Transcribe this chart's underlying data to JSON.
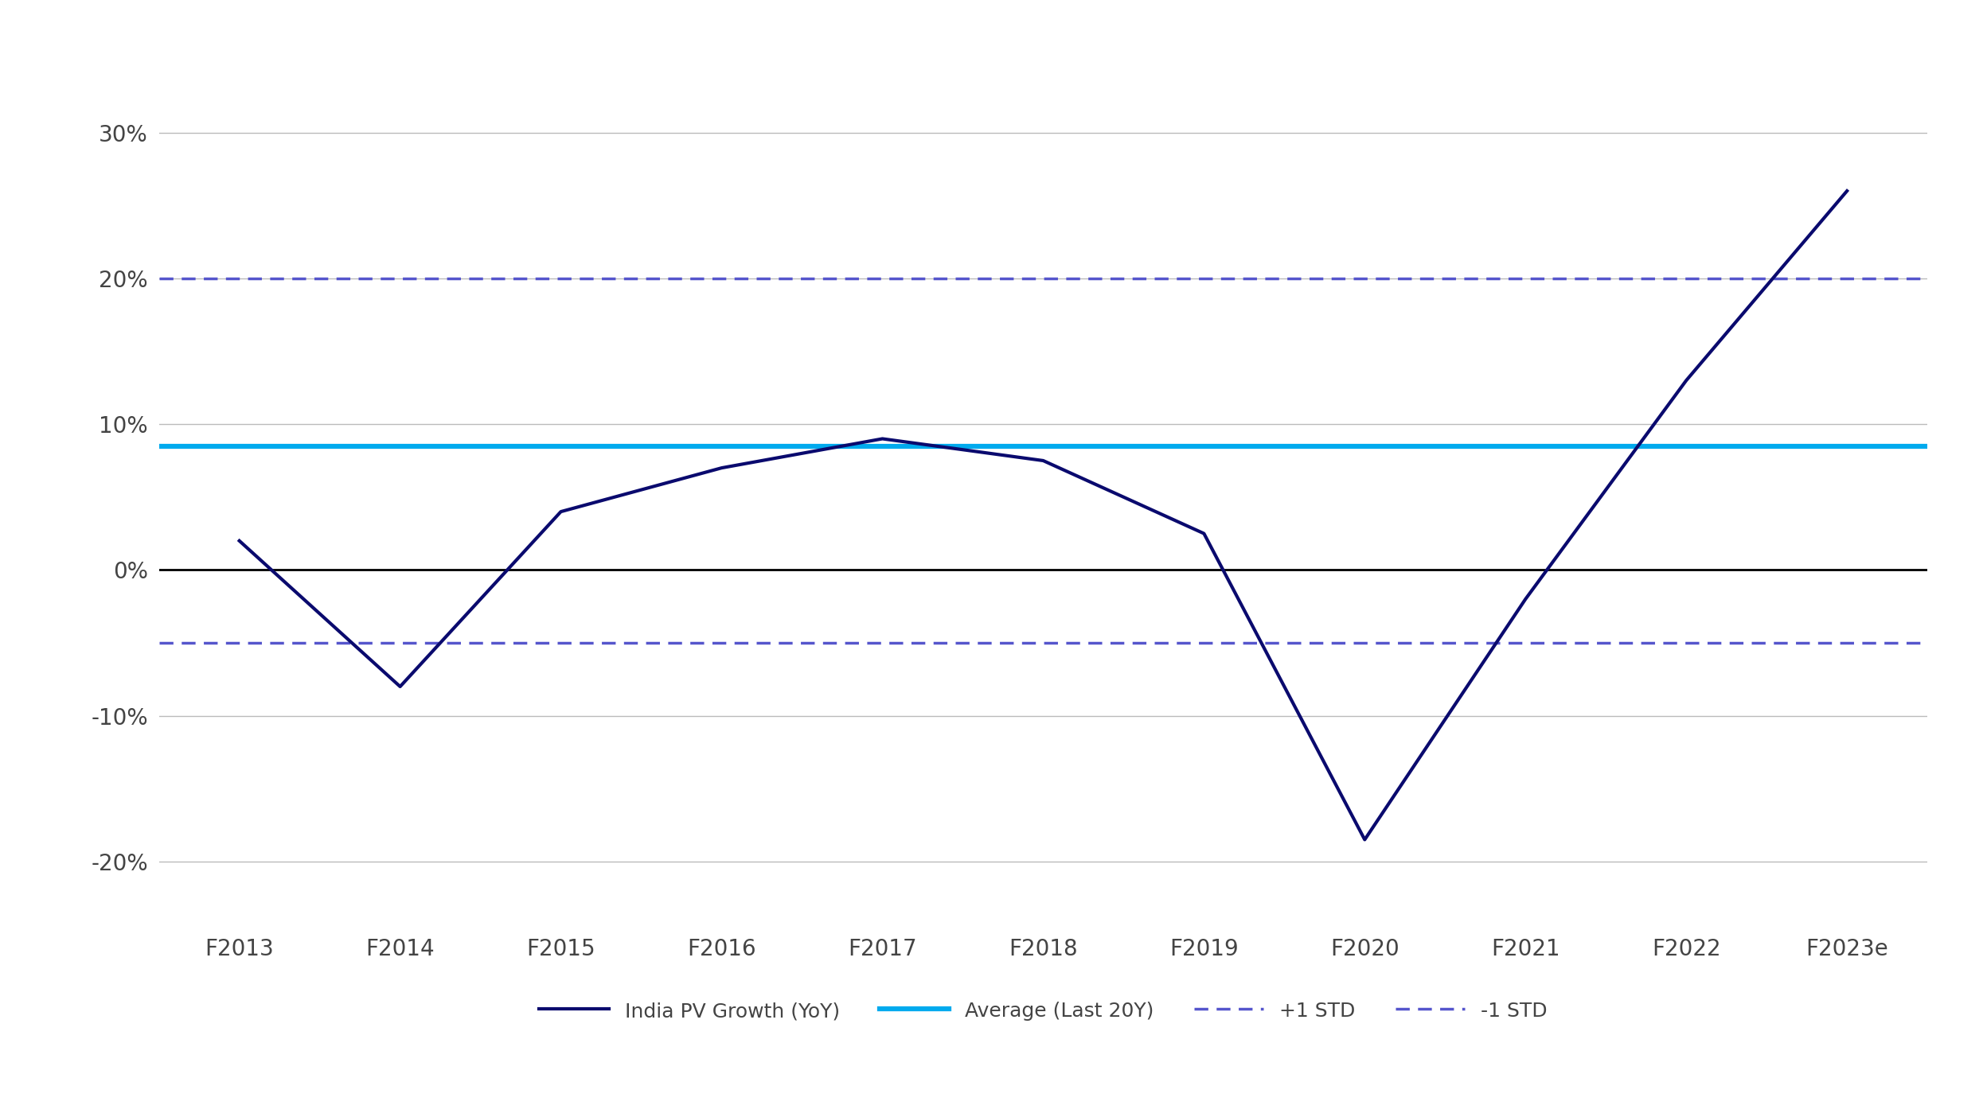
{
  "categories": [
    "F2013",
    "F2014",
    "F2015",
    "F2016",
    "F2017",
    "F2018",
    "F2019",
    "F2020",
    "F2021",
    "F2022",
    "F2023e"
  ],
  "pv_growth": [
    0.02,
    -0.08,
    0.04,
    0.07,
    0.09,
    0.075,
    0.025,
    -0.185,
    -0.02,
    0.13,
    0.26
  ],
  "average_20y": 0.085,
  "std_plus1": 0.2,
  "std_minus1": -0.05,
  "ylim": [
    -0.245,
    0.345
  ],
  "yticks": [
    -0.2,
    -0.1,
    0.0,
    0.1,
    0.2,
    0.3
  ],
  "ytick_labels": [
    "-20%",
    "-10%",
    "0%",
    "10%",
    "20%",
    "30%"
  ],
  "pv_color": "#0A0A6E",
  "avg_color": "#00AAEE",
  "std_color": "#5555CC",
  "zero_line_color": "#000000",
  "grid_color": "#BBBBBB",
  "background_color": "#FFFFFF",
  "legend_pv_label": "India PV Growth (YoY)",
  "legend_avg_label": "Average (Last 20Y)",
  "legend_std_plus_label": "+1 STD",
  "legend_std_minus_label": "-1 STD",
  "tick_fontsize": 20,
  "legend_fontsize": 18,
  "linewidth_pv": 3.0,
  "linewidth_avg": 4.5,
  "linewidth_std": 2.5,
  "linewidth_zero": 2.0
}
